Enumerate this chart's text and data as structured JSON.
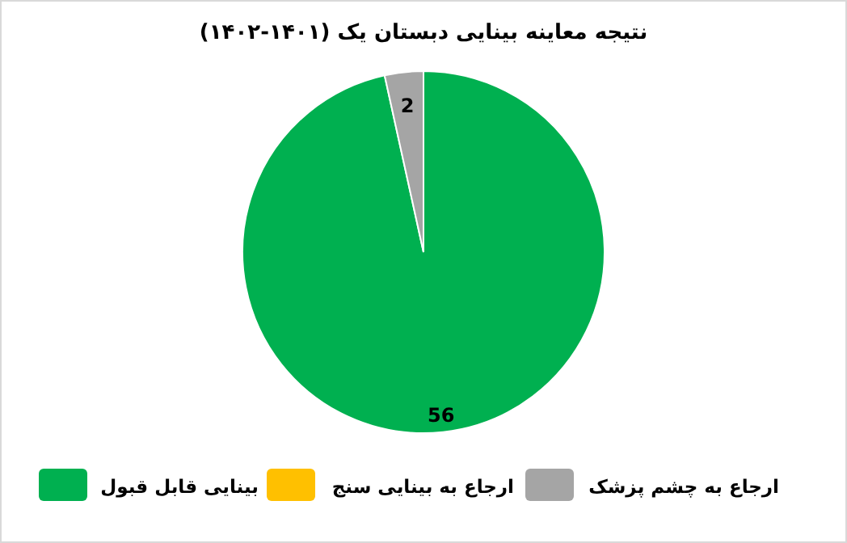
{
  "chart_data": {
    "type": "pie",
    "title": "نتیجه معاینه بینایی دبستان یک (۱۴۰۱-۱۴۰۲)",
    "categories": [
      "بینایی قابل قبول",
      "ارجاع به بینایی سنج",
      "ارجاع به چشم پزشک"
    ],
    "values": [
      56,
      0,
      2
    ],
    "colors": [
      "#00b050",
      "#ffc000",
      "#a5a5a5"
    ],
    "value_labels": [
      "56",
      null,
      "2"
    ],
    "legend": "bottom"
  }
}
